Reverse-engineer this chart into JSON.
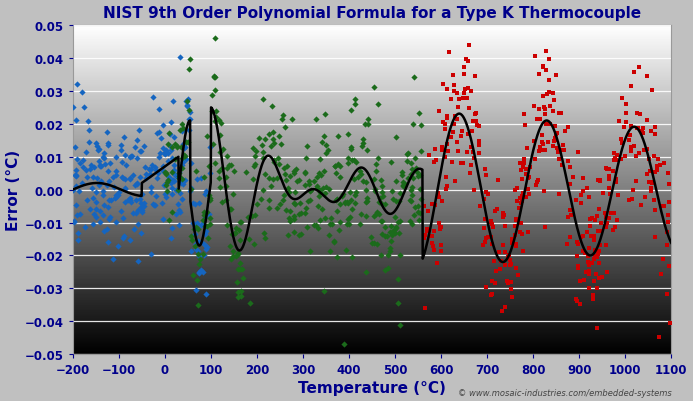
{
  "title": "NIST 9th Order Polynomial Formula for a Type K Thermocouple",
  "xlabel": "Temperature (°C)",
  "ylabel": "Error (°C)",
  "xlim": [
    -200,
    1100
  ],
  "ylim": [
    -0.05,
    0.05
  ],
  "xticks": [
    -200,
    -100,
    0,
    100,
    200,
    300,
    400,
    500,
    600,
    700,
    800,
    900,
    1000,
    1100
  ],
  "yticks": [
    -0.05,
    -0.04,
    -0.03,
    -0.02,
    -0.01,
    0.0,
    0.01,
    0.02,
    0.03,
    0.04,
    0.05
  ],
  "title_color": "#00008B",
  "axis_label_color": "#00008B",
  "tick_color": "#00008B",
  "watermark": "© www.mosaic-industries.com/embedded-systems",
  "blue_color": "#1565C0",
  "green_color": "#1B6B1B",
  "red_color": "#CC0000",
  "black_line_color": "#000000",
  "background_color": "#C0C0C0",
  "figsize": [
    6.93,
    4.02
  ],
  "dpi": 100,
  "grid_color": "#FFFFFF",
  "grid_alpha": 0.9
}
